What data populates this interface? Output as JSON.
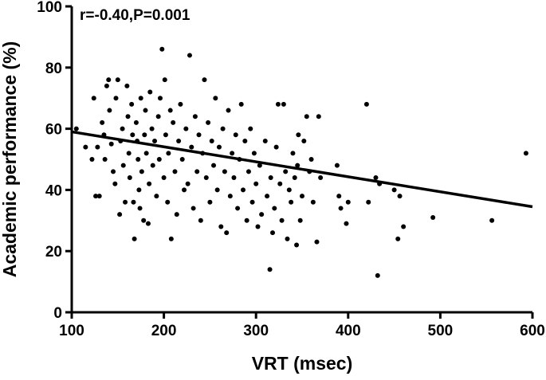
{
  "chart_data": {
    "type": "scatter",
    "annotation": "r=-0.40,P=0.001",
    "x_label": "VRT (msec)",
    "y_label": "Academic performance (%)",
    "xlim": [
      100,
      600
    ],
    "ylim": [
      0,
      100
    ],
    "xticks": [
      100,
      200,
      300,
      400,
      500,
      600
    ],
    "yticks": [
      0,
      20,
      40,
      60,
      80,
      100
    ],
    "color": "#000000",
    "regression": {
      "x": [
        100,
        600
      ],
      "y": [
        59,
        34.5
      ]
    },
    "x": [
      105,
      115,
      122,
      124,
      126,
      130,
      128,
      133,
      135,
      136,
      138,
      140,
      141,
      143,
      145,
      147,
      148,
      150,
      152,
      153,
      155,
      156,
      158,
      160,
      161,
      162,
      163,
      165,
      166,
      167,
      168,
      170,
      171,
      172,
      173,
      174,
      175,
      176,
      178,
      179,
      180,
      181,
      183,
      184,
      185,
      187,
      188,
      190,
      192,
      194,
      195,
      196,
      198,
      200,
      201,
      202,
      204,
      205,
      207,
      208,
      210,
      212,
      214,
      216,
      218,
      220,
      222,
      224,
      226,
      228,
      230,
      232,
      234,
      236,
      238,
      240,
      242,
      244,
      246,
      248,
      250,
      252,
      254,
      256,
      258,
      260,
      262,
      264,
      266,
      268,
      270,
      272,
      274,
      276,
      278,
      280,
      282,
      284,
      286,
      288,
      290,
      292,
      294,
      296,
      298,
      300,
      302,
      304,
      306,
      310,
      312,
      315,
      316,
      318,
      320,
      322,
      324,
      326,
      328,
      330,
      332,
      334,
      336,
      338,
      340,
      342,
      344,
      345,
      346,
      348,
      350,
      352,
      355,
      358,
      360,
      362,
      366,
      368,
      370,
      388,
      390,
      392,
      398,
      400,
      420,
      422,
      430,
      432,
      434,
      450,
      454,
      456,
      460,
      492,
      556,
      593
    ],
    "y": [
      60,
      54,
      50,
      70,
      38,
      38,
      54,
      62,
      58,
      50,
      74,
      76,
      66,
      55,
      46,
      42,
      70,
      76,
      32,
      56,
      60,
      48,
      36,
      74,
      64,
      52,
      44,
      68,
      58,
      36,
      24,
      62,
      56,
      50,
      40,
      34,
      70,
      46,
      30,
      58,
      66,
      52,
      29,
      42,
      72,
      60,
      48,
      56,
      38,
      64,
      50,
      70,
      86,
      44,
      76,
      58,
      36,
      52,
      66,
      24,
      62,
      46,
      32,
      56,
      68,
      50,
      40,
      60,
      42,
      84,
      54,
      34,
      64,
      46,
      58,
      30,
      52,
      76,
      44,
      62,
      36,
      56,
      48,
      70,
      40,
      54,
      28,
      60,
      46,
      26,
      66,
      38,
      52,
      44,
      58,
      34,
      50,
      68,
      40,
      56,
      30,
      46,
      60,
      36,
      52,
      42,
      28,
      48,
      32,
      56,
      38,
      14,
      44,
      26,
      34,
      54,
      68,
      42,
      30,
      68,
      46,
      24,
      40,
      36,
      52,
      44,
      22,
      48,
      58,
      30,
      38,
      56,
      64,
      46,
      50,
      36,
      23,
      64,
      44,
      48,
      38,
      34,
      29,
      36,
      68,
      36,
      44,
      12,
      42,
      40,
      24,
      38,
      28,
      31,
      30,
      52
    ]
  }
}
